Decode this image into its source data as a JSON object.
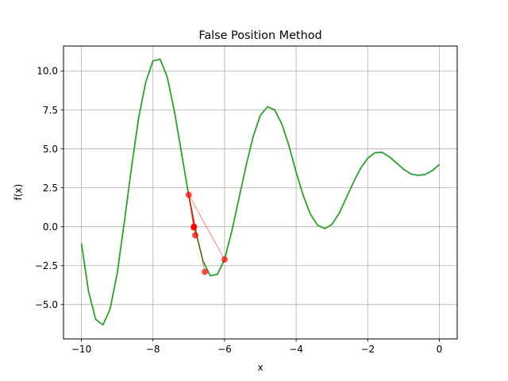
{
  "chart_data": {
    "type": "line",
    "title": "False Position Method",
    "xlabel": "x",
    "ylabel": "f(x)",
    "xlim": [
      -10.5,
      0.5
    ],
    "ylim": [
      -7.2,
      11.6
    ],
    "grid": true,
    "legend": "none",
    "x_ticks": [
      {
        "value": -10,
        "label": "−10"
      },
      {
        "value": -8,
        "label": "−8"
      },
      {
        "value": -6,
        "label": "−6"
      },
      {
        "value": -4,
        "label": "−4"
      },
      {
        "value": -2,
        "label": "−2"
      },
      {
        "value": 0,
        "label": "0"
      }
    ],
    "y_ticks": [
      {
        "value": -5.0,
        "label": "−5.0"
      },
      {
        "value": -2.5,
        "label": "−2.5"
      },
      {
        "value": 0.0,
        "label": "0.0"
      },
      {
        "value": 2.5,
        "label": "2.5"
      },
      {
        "value": 5.0,
        "label": "5.0"
      },
      {
        "value": 7.5,
        "label": "7.5"
      },
      {
        "value": 10.0,
        "label": "10.0"
      }
    ],
    "curve": {
      "color": "#2ca02c",
      "x": [
        -10.0,
        -9.8,
        -9.6,
        -9.4,
        -9.2,
        -9.0,
        -8.8,
        -8.6,
        -8.4,
        -8.2,
        -8.0,
        -7.8,
        -7.6,
        -7.4,
        -7.2,
        -7.0,
        -6.8,
        -6.6,
        -6.4,
        -6.2,
        -6.0,
        -5.8,
        -5.6,
        -5.4,
        -5.2,
        -5.0,
        -4.8,
        -4.6,
        -4.4,
        -4.2,
        -4.0,
        -3.8,
        -3.6,
        -3.4,
        -3.2,
        -3.0,
        -2.8,
        -2.6,
        -2.4,
        -2.2,
        -2.0,
        -1.8,
        -1.6,
        -1.4,
        -1.2,
        -1.0,
        -0.8,
        -0.6,
        -0.4,
        -0.2,
        0.0
      ],
      "y": [
        -1.05,
        -4.15,
        -5.95,
        -6.3,
        -5.3,
        -3.0,
        0.3,
        3.8,
        7.0,
        9.3,
        10.65,
        10.75,
        9.6,
        7.4,
        4.7,
        2.0,
        -0.4,
        -2.2,
        -3.15,
        -3.05,
        -2.1,
        -0.3,
        1.8,
        3.9,
        5.8,
        7.15,
        7.7,
        7.5,
        6.6,
        5.2,
        3.5,
        2.0,
        0.8,
        0.1,
        -0.12,
        0.15,
        0.85,
        1.85,
        2.85,
        3.75,
        4.4,
        4.75,
        4.78,
        4.5,
        4.1,
        3.7,
        3.4,
        3.3,
        3.35,
        3.6,
        4.0
      ]
    },
    "iterations": {
      "color": "#ff0000",
      "points": [
        {
          "x": -7.0,
          "y": 2.05
        },
        {
          "x": -6.0,
          "y": -2.1
        },
        {
          "x": -6.55,
          "y": -2.9
        },
        {
          "x": -6.82,
          "y": -0.55
        },
        {
          "x": -6.85,
          "y": 0.0
        },
        {
          "x": -6.86,
          "y": -0.05
        },
        {
          "x": -6.86,
          "y": 0.0
        }
      ],
      "secants": [
        {
          "x1": -7.0,
          "y1": 2.05,
          "x2": -6.0,
          "y2": -2.1
        },
        {
          "x1": -7.0,
          "y1": 2.05,
          "x2": -6.55,
          "y2": -2.9
        },
        {
          "x1": -7.0,
          "y1": 2.05,
          "x2": -6.82,
          "y2": -0.55
        },
        {
          "x1": -7.0,
          "y1": 2.05,
          "x2": -6.85,
          "y2": 0.0
        },
        {
          "x1": -7.0,
          "y1": 2.05,
          "x2": -6.86,
          "y2": -0.05
        },
        {
          "x1": -7.0,
          "y1": 2.05,
          "x2": -6.86,
          "y2": 0.0
        }
      ]
    }
  }
}
